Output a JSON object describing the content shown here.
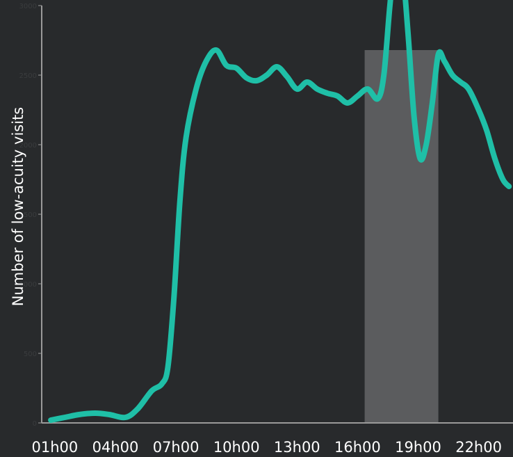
{
  "chart_data": {
    "type": "line",
    "title": "",
    "xlabel": "",
    "ylabel": "Number of low-acuity visits",
    "x_tick_labels": [
      "01h00",
      "04h00",
      "07h00",
      "10h00",
      "13h00",
      "16h00",
      "19h00",
      "22h00"
    ],
    "x_tick_values": [
      1,
      4,
      7,
      10,
      13,
      16,
      19,
      22
    ],
    "xlim": [
      0.35,
      23.7
    ],
    "ylim": [
      0,
      3000
    ],
    "y_tick_values": [
      0,
      500,
      1000,
      1500,
      2000,
      2500,
      3000
    ],
    "y_tick_labels": [
      "0",
      "500",
      "1000",
      "1500",
      "2000",
      "2500",
      "3000"
    ],
    "grid": false,
    "highlight_band": {
      "x_start": 16.35,
      "x_end": 20.0,
      "y_top": 2680
    },
    "series": [
      {
        "color": "#1fbfa7",
        "x": [
          0.8,
          1.5,
          2.2,
          3.0,
          3.7,
          4.5,
          5.1,
          5.8,
          6.3,
          6.6,
          6.9,
          7.2,
          7.5,
          8.0,
          8.5,
          9.0,
          9.5,
          10.0,
          10.5,
          11.0,
          11.5,
          12.0,
          12.5,
          13.0,
          13.5,
          14.0,
          14.5,
          15.0,
          15.5,
          16.0,
          16.5,
          17.0,
          17.3,
          17.6,
          17.9,
          18.2,
          18.5,
          18.8,
          19.1,
          19.4,
          19.7,
          20.0,
          20.3,
          20.7,
          21.1,
          21.5,
          22.0,
          22.4,
          22.8,
          23.2,
          23.5
        ],
        "y": [
          20,
          40,
          60,
          70,
          60,
          40,
          100,
          230,
          280,
          400,
          900,
          1600,
          2050,
          2400,
          2600,
          2680,
          2570,
          2550,
          2480,
          2460,
          2500,
          2560,
          2490,
          2400,
          2450,
          2400,
          2370,
          2350,
          2300,
          2350,
          2400,
          2330,
          2500,
          3000,
          3400,
          3300,
          2800,
          2200,
          1900,
          2000,
          2300,
          2650,
          2600,
          2500,
          2450,
          2400,
          2250,
          2100,
          1900,
          1750,
          1700
        ]
      }
    ]
  }
}
